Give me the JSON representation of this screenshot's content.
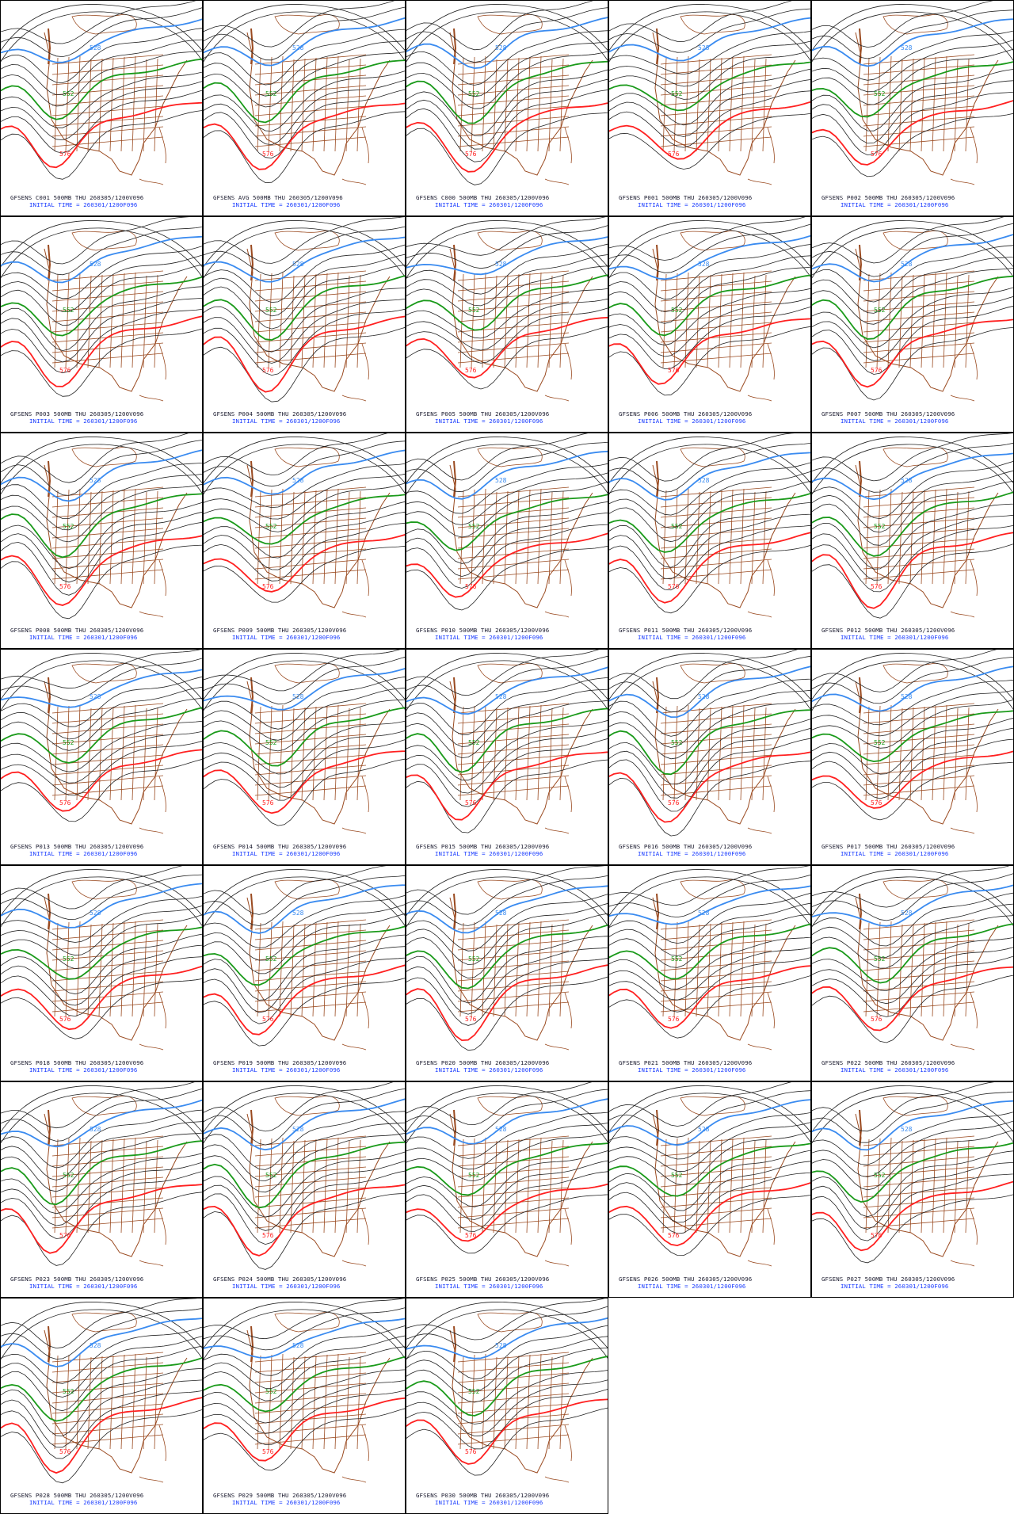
{
  "colors": {
    "contour_black": "#222222",
    "contour_blue": "#3a8bf0",
    "contour_green": "#1a9a1a",
    "contour_red": "#ff2020",
    "borders": "#9a4a20",
    "label_blue": "#1a3cff"
  },
  "contour_labels": {
    "blue": "528",
    "green": "552",
    "red": "576"
  },
  "initial_time_text": "INITIAL TIME = 260301/1200F096",
  "panels": [
    {
      "id": "C001",
      "title": "GFSENS C001 500MB THU 260305/1200V096"
    },
    {
      "id": "AVG",
      "title": "GFSENS AVG 500MB THU 260305/1200V096"
    },
    {
      "id": "C000",
      "title": "GFSENS C000 500MB THU 260305/1200V096"
    },
    {
      "id": "P001",
      "title": "GFSENS P001 500MB THU 260305/1200V096"
    },
    {
      "id": "P002",
      "title": "GFSENS P002 500MB THU 260305/1200V096"
    },
    {
      "id": "P003",
      "title": "GFSENS P003 500MB THU 260305/1200V096"
    },
    {
      "id": "P004",
      "title": "GFSENS P004 500MB THU 260305/1200V096"
    },
    {
      "id": "P005",
      "title": "GFSENS P005 500MB THU 260305/1200V096"
    },
    {
      "id": "P006",
      "title": "GFSENS P006 500MB THU 260305/1200V096"
    },
    {
      "id": "P007",
      "title": "GFSENS P007 500MB THU 260305/1200V096"
    },
    {
      "id": "P008",
      "title": "GFSENS P008 500MB THU 260305/1200V096"
    },
    {
      "id": "P009",
      "title": "GFSENS P009 500MB THU 260305/1200V096"
    },
    {
      "id": "P010",
      "title": "GFSENS P010 500MB THU 260305/1200V096"
    },
    {
      "id": "P011",
      "title": "GFSENS P011 500MB THU 260305/1200V096"
    },
    {
      "id": "P012",
      "title": "GFSENS P012 500MB THU 260305/1200V096"
    },
    {
      "id": "P013",
      "title": "GFSENS P013 500MB THU 260305/1200V096"
    },
    {
      "id": "P014",
      "title": "GFSENS P014 500MB THU 260305/1200V096"
    },
    {
      "id": "P015",
      "title": "GFSENS P015 500MB THU 260305/1200V096"
    },
    {
      "id": "P016",
      "title": "GFSENS P016 500MB THU 260305/1200V096"
    },
    {
      "id": "P017",
      "title": "GFSENS P017 500MB THU 260305/1200V096"
    },
    {
      "id": "P018",
      "title": "GFSENS P018 500MB THU 260305/1200V096"
    },
    {
      "id": "P019",
      "title": "GFSENS P019 500MB THU 260305/1200V096"
    },
    {
      "id": "P020",
      "title": "GFSENS P020 500MB THU 260305/1200V096"
    },
    {
      "id": "P021",
      "title": "GFSENS P021 500MB THU 260305/1200V096"
    },
    {
      "id": "P022",
      "title": "GFSENS P022 500MB THU 260305/1200V096"
    },
    {
      "id": "P023",
      "title": "GFSENS P023 500MB THU 260305/1200V096"
    },
    {
      "id": "P024",
      "title": "GFSENS P024 500MB THU 260305/1200V096"
    },
    {
      "id": "P025",
      "title": "GFSENS P025 500MB THU 260305/1200V096"
    },
    {
      "id": "P026",
      "title": "GFSENS P026 500MB THU 260305/1200V096"
    },
    {
      "id": "P027",
      "title": "GFSENS P027 500MB THU 260305/1200V096"
    },
    {
      "id": "P028",
      "title": "GFSENS P028 500MB THU 260305/1200V096"
    },
    {
      "id": "P029",
      "title": "GFSENS P029 500MB THU 260305/1200V096"
    },
    {
      "id": "P030",
      "title": "GFSENS P030 500MB THU 260305/1200V096"
    }
  ]
}
